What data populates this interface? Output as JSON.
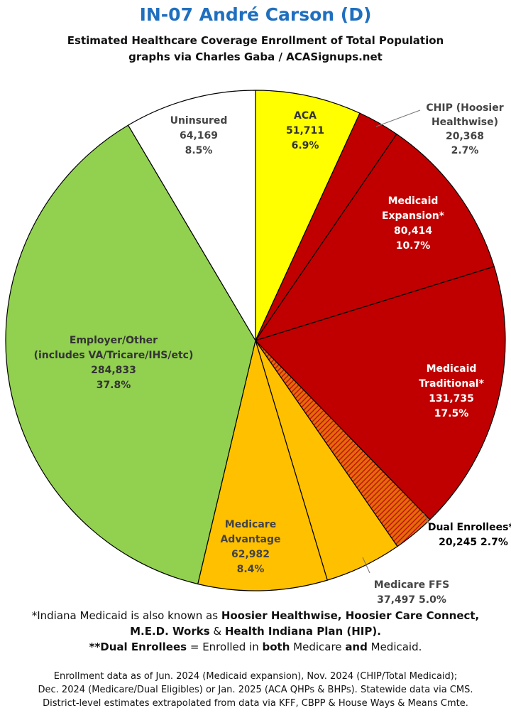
{
  "header": {
    "title": "IN-07 André Carson (D)",
    "subtitle_1": "Estimated Healthcare Coverage Enrollment of Total Population",
    "subtitle_2": "graphs via Charles Gaba / ACASignups.net"
  },
  "chart_data": {
    "type": "pie",
    "title": "IN-07 André Carson (D)",
    "start_angle_deg": 0,
    "direction": "clockwise",
    "slices": [
      {
        "name": "ACA",
        "label_lines": [
          "ACA",
          "51,711",
          "6.9%"
        ],
        "value": 51711,
        "percent": 6.9,
        "color": "#ffff00",
        "label_color": "#333333",
        "hatched": false
      },
      {
        "name": "CHIP (Hoosier Healthwise)",
        "label_lines": [
          "CHIP (Hoosier",
          "Healthwise)",
          "20,368",
          "2.7%"
        ],
        "value": 20368,
        "percent": 2.7,
        "color": "#c00000",
        "label_color": "#444444",
        "hatched": false,
        "outside_label": true
      },
      {
        "name": "Medicaid Expansion*",
        "label_lines": [
          "Medicaid",
          "Expansion*",
          "80,414",
          "10.7%"
        ],
        "value": 80414,
        "percent": 10.7,
        "color": "#c00000",
        "label_color": "#ffffff",
        "hatched": false
      },
      {
        "name": "Medicaid Traditional*",
        "label_lines": [
          "Medicaid",
          "Traditional*",
          "131,735",
          "17.5%"
        ],
        "value": 131735,
        "percent": 17.5,
        "color": "#c00000",
        "label_color": "#ffffff",
        "hatched": false
      },
      {
        "name": "Dual Enrollees**",
        "label_lines": [
          "Dual Enrollees**",
          "20,245 2.7%"
        ],
        "value": 20245,
        "percent": 2.7,
        "color": "#e26b0a",
        "label_color": "#000000",
        "hatched": true,
        "outside_label": true
      },
      {
        "name": "Medicare FFS",
        "label_lines": [
          "Medicare FFS",
          "37,497 5.0%"
        ],
        "value": 37497,
        "percent": 5.0,
        "color": "#ffc000",
        "label_color": "#444444",
        "hatched": false,
        "outside_label": true
      },
      {
        "name": "Medicare Advantage",
        "label_lines": [
          "Medicare",
          "Advantage",
          "62,982",
          "8.4%"
        ],
        "value": 62982,
        "percent": 8.4,
        "color": "#ffc000",
        "label_color": "#444444",
        "hatched": false
      },
      {
        "name": "Employer/Other (includes VA/Tricare/IHS/etc)",
        "label_lines": [
          "Employer/Other",
          "(includes VA/Tricare/IHS/etc)",
          "284,833",
          "37.8%"
        ],
        "value": 284833,
        "percent": 37.8,
        "color": "#92d050",
        "label_color": "#333333",
        "hatched": false
      },
      {
        "name": "Uninsured",
        "label_lines": [
          "Uninsured",
          "64,169",
          "8.5%"
        ],
        "value": 64169,
        "percent": 8.5,
        "color": "#ffffff",
        "label_color": "#444444",
        "hatched": false
      }
    ]
  },
  "footnotes": {
    "line1": [
      {
        "text": "*Indiana Medicaid is also known as ",
        "bold": false
      },
      {
        "text": "Hoosier Healthwise, Hoosier Care Connect,",
        "bold": true
      }
    ],
    "line2": [
      {
        "text": "M.E.D. Works",
        "bold": true
      },
      {
        "text": " & ",
        "bold": false
      },
      {
        "text": "Health Indiana Plan (HIP).",
        "bold": true
      }
    ],
    "line3": [
      {
        "text": "**Dual Enrollees",
        "bold": true
      },
      {
        "text": " = Enrolled in ",
        "bold": false
      },
      {
        "text": "both",
        "bold": true
      },
      {
        "text": " Medicare ",
        "bold": false
      },
      {
        "text": "and",
        "bold": true
      },
      {
        "text": " Medicaid.",
        "bold": false
      }
    ]
  },
  "source": {
    "line1": "Enrollment data as of Jun. 2024 (Medicaid expansion), Nov. 2024 (CHIP/Total Medicaid);",
    "line2": "Dec. 2024 (Medicare/Dual Eligibles) or Jan. 2025 (ACA QHPs & BHPs). Statewide data via CMS.",
    "line3": "District-level estimates extrapolated from data via KFF, CBPP & House Ways & Means Cmte."
  }
}
